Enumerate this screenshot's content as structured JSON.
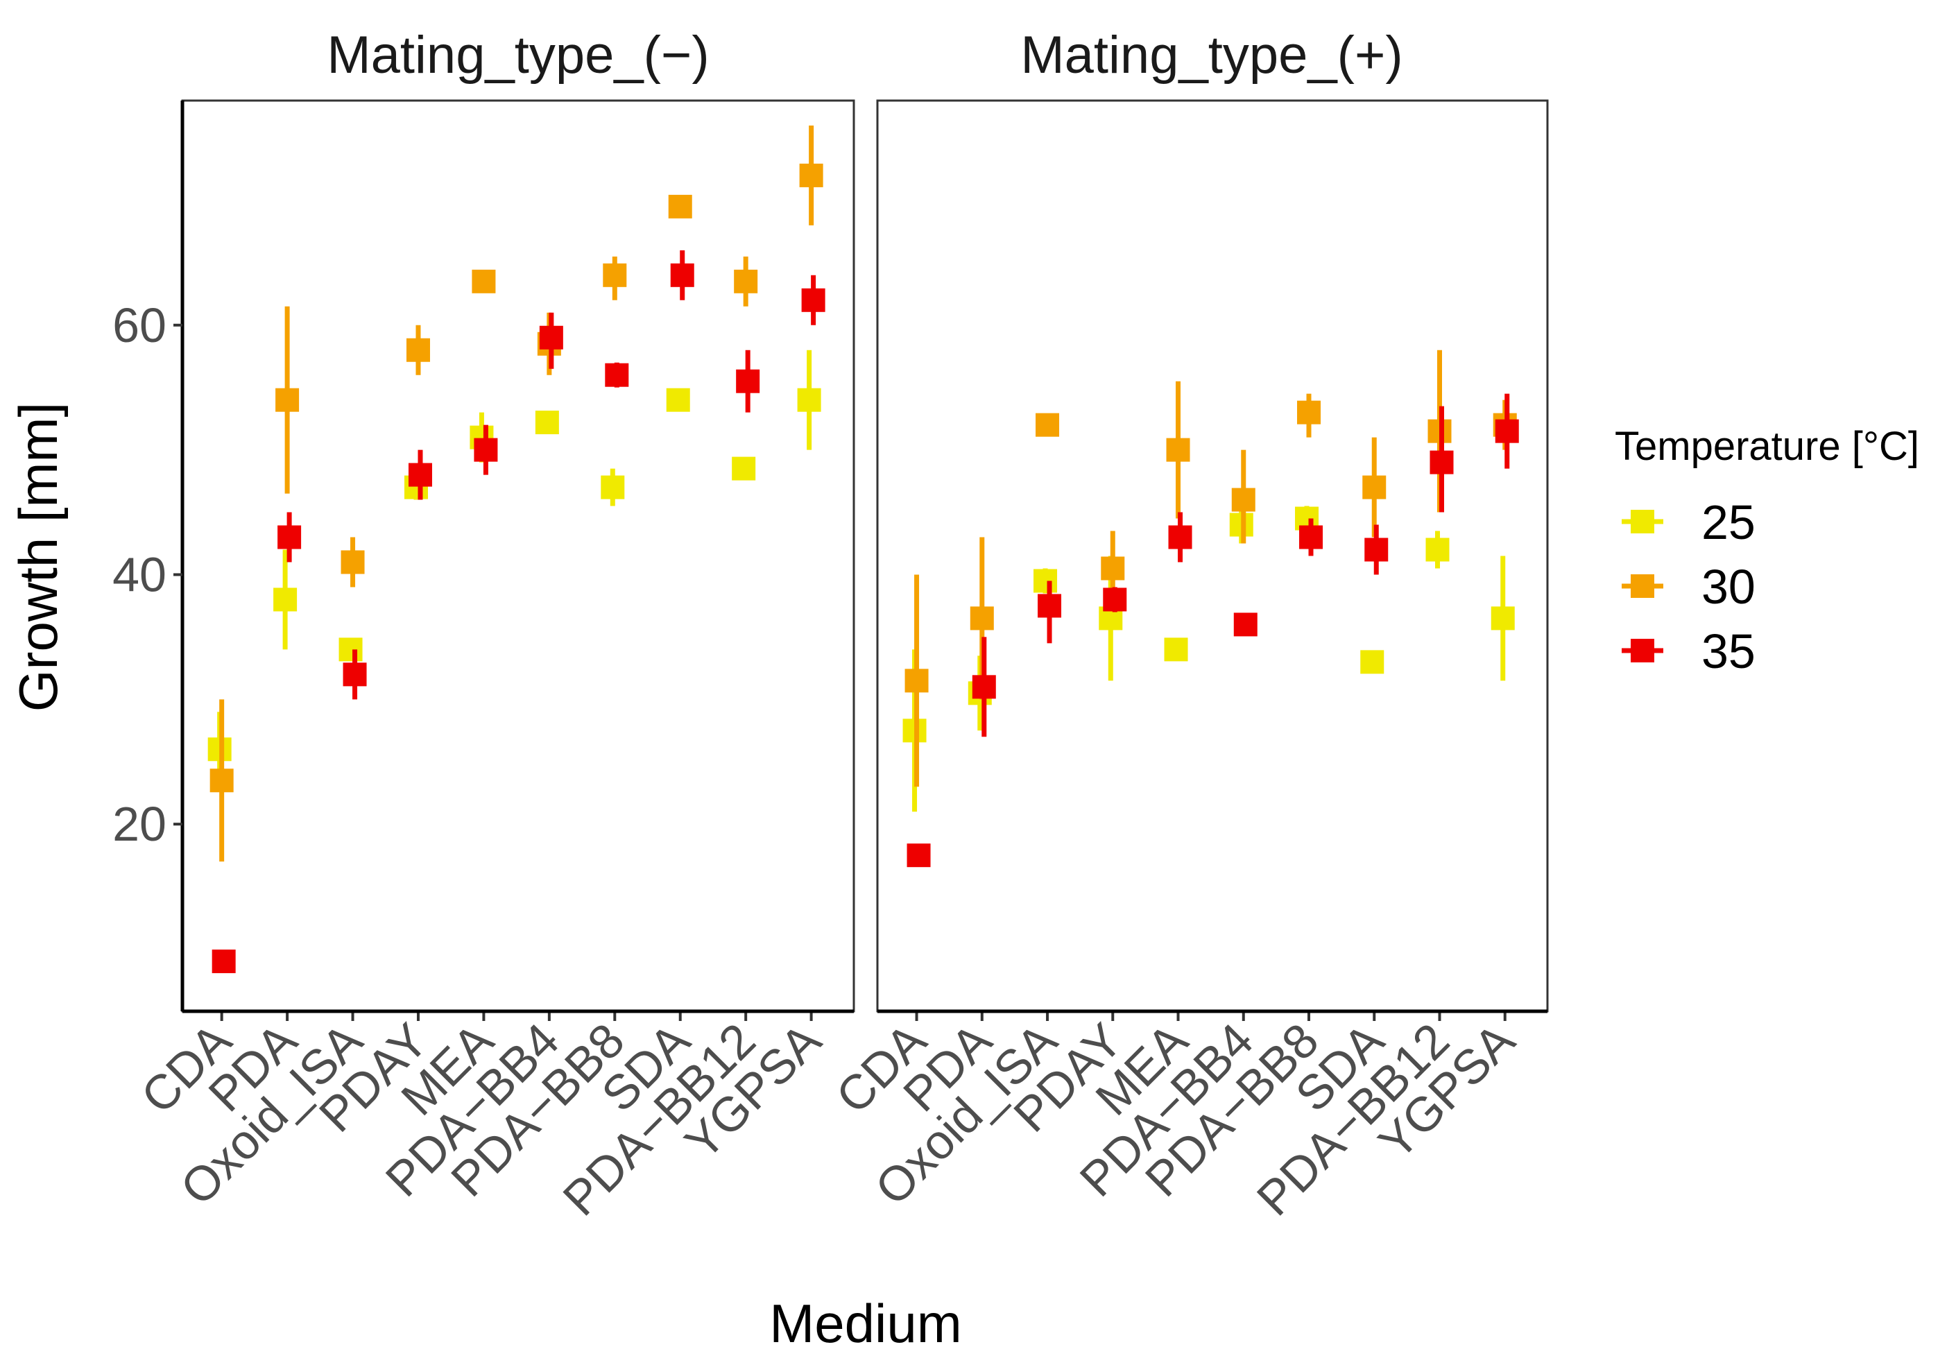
{
  "chart_data": {
    "type": "scatter",
    "xlabel": "Medium",
    "ylabel": "Growth [mm]",
    "ylim": [
      5,
      78
    ],
    "yticks": [
      "20",
      "40",
      "60"
    ],
    "legend": {
      "title": "Temperature [°C]",
      "position": "right",
      "entries": [
        {
          "label": "25",
          "color": "#F0EA00"
        },
        {
          "label": "30",
          "color": "#F5A100"
        },
        {
          "label": "35",
          "color": "#EE0000"
        }
      ]
    },
    "categories": [
      "CDA",
      "PDA",
      "Oxoid_ISA",
      "PDAY",
      "MEA",
      "PDA−BB4",
      "PDA−BB8",
      "SDA",
      "PDA−BB12",
      "YGPSA"
    ],
    "panels": [
      {
        "title": "Mating_type_(−)",
        "series": [
          {
            "name": "25",
            "color": "#F0EA00",
            "values": [
              26,
              38,
              34,
              47,
              51,
              52.2,
              47,
              54,
              48.5,
              54
            ],
            "lower": [
              23,
              34,
              33.5,
              46,
              49,
              51.5,
              45.5,
              53.5,
              47.8,
              50
            ],
            "upper": [
              29,
              42,
              34.5,
              48,
              53,
              53,
              48.5,
              54.5,
              49.2,
              58
            ]
          },
          {
            "name": "30",
            "color": "#F5A100",
            "values": [
              23.5,
              54,
              41,
              58,
              63.5,
              58.5,
              64,
              69.5,
              63.5,
              72
            ],
            "lower": [
              17,
              46.5,
              39,
              56,
              63,
              56,
              62,
              69,
              61.5,
              68
            ],
            "upper": [
              30,
              61.5,
              43,
              60,
              64,
              61,
              65.5,
              70,
              65.5,
              76
            ]
          },
          {
            "name": "35",
            "color": "#EE0000",
            "values": [
              9,
              43,
              32,
              48,
              50,
              59,
              56,
              64,
              55.5,
              62
            ],
            "lower": [
              8.5,
              41,
              30,
              46,
              48,
              56.5,
              55,
              62,
              53,
              60
            ],
            "upper": [
              9.5,
              45,
              34,
              50,
              52,
              61,
              57,
              66,
              58,
              64
            ]
          }
        ]
      },
      {
        "title": "Mating_type_(+)",
        "series": [
          {
            "name": "25",
            "color": "#F0EA00",
            "values": [
              27.5,
              30.5,
              39.5,
              36.5,
              34,
              44,
              44.5,
              33,
              42,
              36.5
            ],
            "lower": [
              21,
              27.5,
              38.5,
              31.5,
              33.5,
              42.5,
              43.5,
              32.5,
              40.5,
              31.5
            ],
            "upper": [
              34,
              33.5,
              40.5,
              41.5,
              34.5,
              45.5,
              45.5,
              33.5,
              43.5,
              41.5
            ]
          },
          {
            "name": "30",
            "color": "#F5A100",
            "values": [
              31.5,
              36.5,
              52,
              40.5,
              50,
              46,
              53,
              47,
              51.5,
              52
            ],
            "lower": [
              23,
              30,
              51.5,
              37.5,
              44.5,
              42.5,
              51,
              43,
              45,
              50
            ],
            "upper": [
              40,
              43,
              52.5,
              43.5,
              55.5,
              50,
              54.5,
              51,
              58,
              54
            ]
          },
          {
            "name": "35",
            "color": "#EE0000",
            "values": [
              17.5,
              31,
              37.5,
              38,
              43,
              36,
              43,
              42,
              49,
              51.5
            ],
            "lower": [
              17,
              27,
              34.5,
              37,
              41,
              35.5,
              41.5,
              40,
              45,
              48.5
            ],
            "upper": [
              18,
              35,
              39.5,
              39,
              45,
              36.5,
              44.5,
              44,
              53.5,
              54.5
            ]
          }
        ]
      }
    ]
  }
}
